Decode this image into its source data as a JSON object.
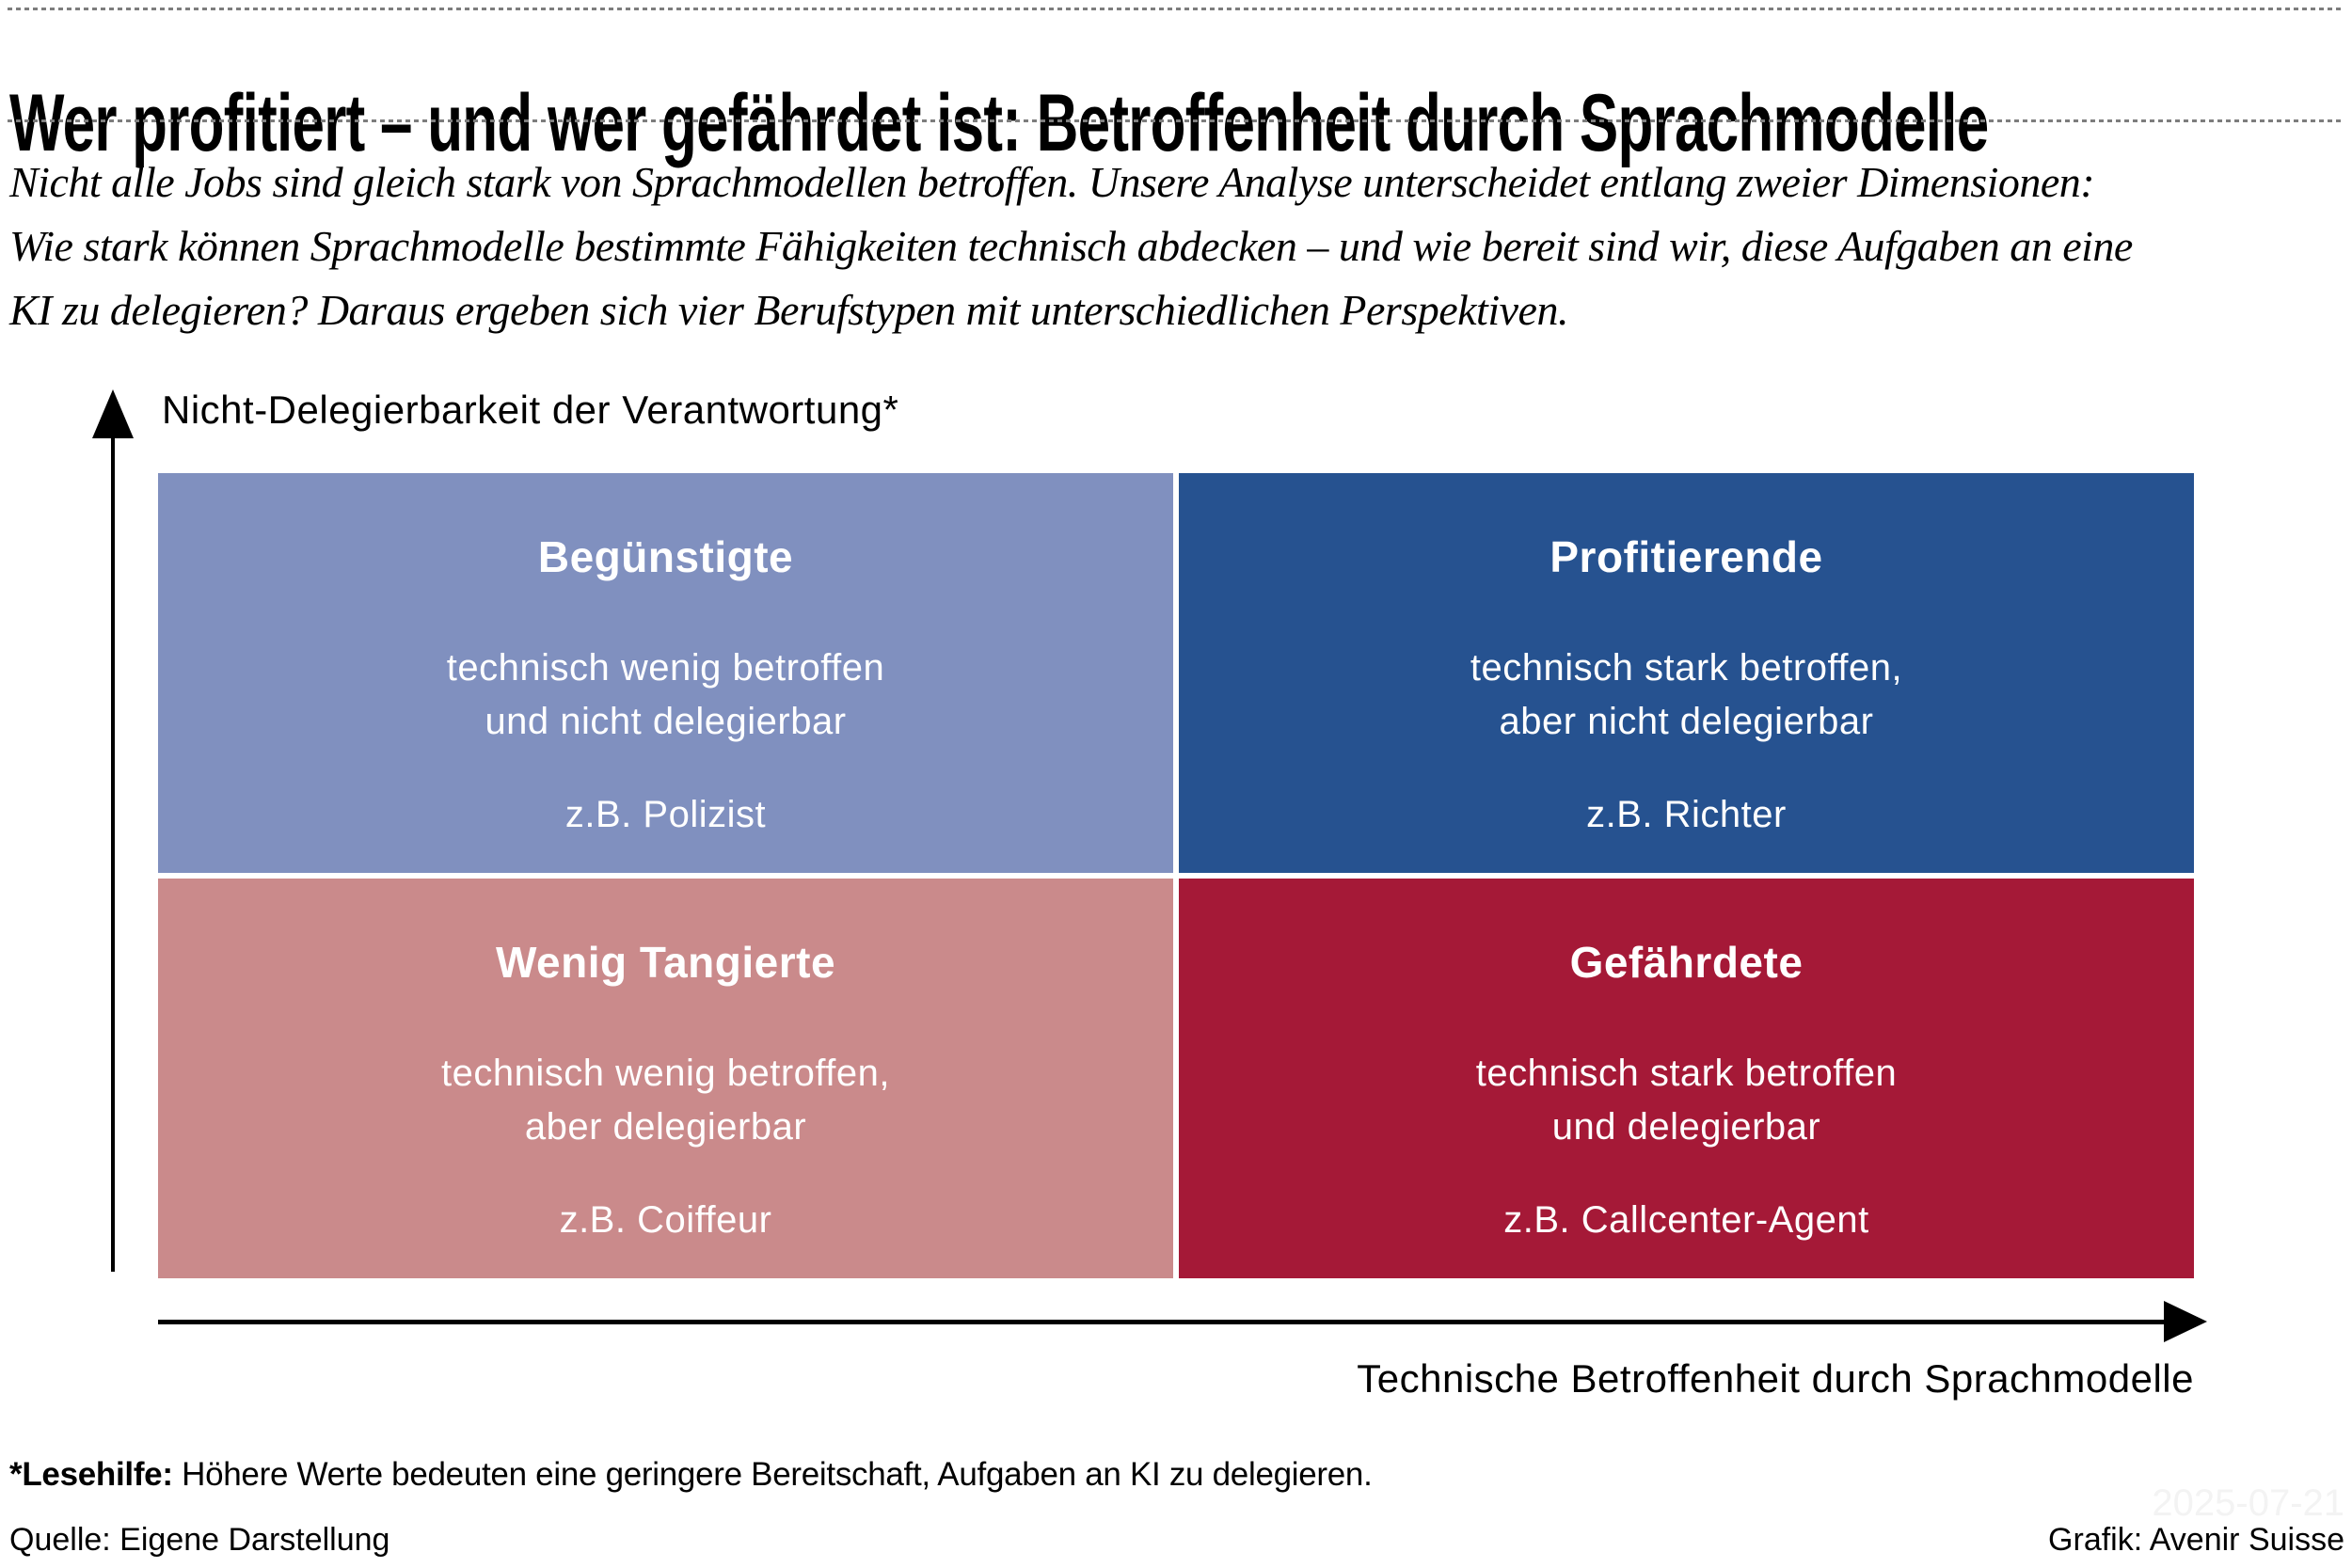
{
  "header": {
    "title": "Wer profitiert – und wer gefährdet ist: Betroffenheit durch Sprachmodelle",
    "intro_lines": [
      "Nicht alle Jobs sind gleich stark von Sprachmodellen betroffen. Unsere Analyse unterscheidet entlang zweier Dimensionen:",
      "Wie stark können Sprachmodelle bestimmte Fähigkeiten technisch abdecken – und wie bereit sind wir, diese Aufgaben an eine",
      "KI zu delegieren? Daraus ergeben sich vier Berufstypen mit unterschiedlichen Perspektiven."
    ]
  },
  "chart_data": {
    "type": "quadrant",
    "x_axis_label": "Technische Betroffenheit durch Sprachmodelle",
    "y_axis_label": "Nicht-Delegierbarkeit der Verantwortung*",
    "quadrants": [
      {
        "position": "top-left",
        "x": "technisch wenig betroffen",
        "y": "nicht delegierbar",
        "title": "Begünstigte",
        "description_lines": [
          "technisch wenig betroffen",
          "und nicht delegierbar"
        ],
        "example": "z.B. Polizist",
        "color": "#8090bf"
      },
      {
        "position": "top-right",
        "x": "technisch stark betroffen",
        "y": "nicht delegierbar",
        "title": "Profitierende",
        "description_lines": [
          "technisch stark betroffen,",
          "aber nicht delegierbar"
        ],
        "example": "z.B. Richter",
        "color": "#265290"
      },
      {
        "position": "bottom-left",
        "x": "technisch wenig betroffen",
        "y": "delegierbar",
        "title": "Wenig Tangierte",
        "description_lines": [
          "technisch wenig betroffen,",
          "aber delegierbar"
        ],
        "example": "z.B. Coiffeur",
        "color": "#ca8a8b"
      },
      {
        "position": "bottom-right",
        "x": "technisch stark betroffen",
        "y": "delegierbar",
        "title": "Gefährdete",
        "description_lines": [
          "technisch stark betroffen",
          "und delegierbar"
        ],
        "example": "z.B. Callcenter-Agent",
        "color": "#a51937"
      }
    ]
  },
  "footnote": {
    "lead": "*Lesehilfe:",
    "text": " Höhere Werte bedeuten eine geringere Bereitschaft, Aufgaben an KI zu delegieren."
  },
  "footer": {
    "source": "Quelle: Eigene Darstellung",
    "credit": "Grafik: Avenir Suisse",
    "watermark": "2025-07-21"
  }
}
